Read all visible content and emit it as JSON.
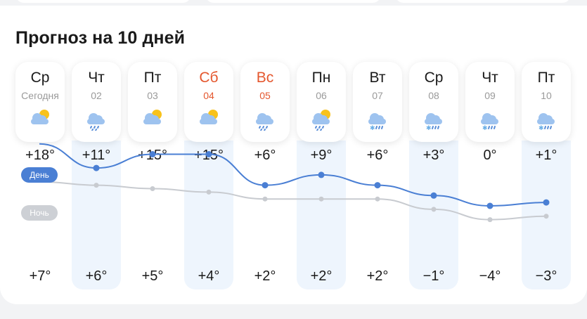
{
  "forecast": {
    "title": "Прогноз на 10 дней",
    "legend_day": "День",
    "legend_night": "Ночь",
    "days": [
      {
        "weekday": "Ср",
        "date": "Сегодня",
        "weekend": false,
        "icon": "partly-cloudy-icon",
        "day_temp": "+18°",
        "night_temp": "+7°",
        "day_value": 18,
        "night_value": 7,
        "highlight": false
      },
      {
        "weekday": "Чт",
        "date": "02",
        "weekend": false,
        "icon": "rain-icon",
        "day_temp": "+11°",
        "night_temp": "+6°",
        "day_value": 11,
        "night_value": 6,
        "highlight": true
      },
      {
        "weekday": "Пт",
        "date": "03",
        "weekend": false,
        "icon": "partly-cloudy-icon",
        "day_temp": "+15°",
        "night_temp": "+5°",
        "day_value": 15,
        "night_value": 5,
        "highlight": false
      },
      {
        "weekday": "Сб",
        "date": "04",
        "weekend": true,
        "icon": "partly-cloudy-icon",
        "day_temp": "+15°",
        "night_temp": "+4°",
        "day_value": 15,
        "night_value": 4,
        "highlight": true
      },
      {
        "weekday": "Вс",
        "date": "05",
        "weekend": true,
        "icon": "rain-icon",
        "day_temp": "+6°",
        "night_temp": "+2°",
        "day_value": 6,
        "night_value": 2,
        "highlight": false
      },
      {
        "weekday": "Пн",
        "date": "06",
        "weekend": false,
        "icon": "sun-rain-icon",
        "day_temp": "+9°",
        "night_temp": "+2°",
        "day_value": 9,
        "night_value": 2,
        "highlight": true
      },
      {
        "weekday": "Вт",
        "date": "07",
        "weekend": false,
        "icon": "sleet-icon",
        "day_temp": "+6°",
        "night_temp": "+2°",
        "day_value": 6,
        "night_value": 2,
        "highlight": false
      },
      {
        "weekday": "Ср",
        "date": "08",
        "weekend": false,
        "icon": "sleet-icon",
        "day_temp": "+3°",
        "night_temp": "−1°",
        "day_value": 3,
        "night_value": -1,
        "highlight": true
      },
      {
        "weekday": "Чт",
        "date": "09",
        "weekend": false,
        "icon": "sleet-icon",
        "day_temp": "0°",
        "night_temp": "−4°",
        "day_value": 0,
        "night_value": -4,
        "highlight": false
      },
      {
        "weekday": "Пт",
        "date": "10",
        "weekend": false,
        "icon": "sleet-icon",
        "day_temp": "+1°",
        "night_temp": "−3°",
        "day_value": 1,
        "night_value": -3,
        "highlight": true
      }
    ]
  },
  "colors": {
    "weekend": "#e4572e",
    "day_line": "#4a7fd4",
    "night_line": "#c8cbd0",
    "highlight_column": "#eef5fd",
    "sun": "#f8c21b",
    "cloud": "#9ec3ef"
  }
}
